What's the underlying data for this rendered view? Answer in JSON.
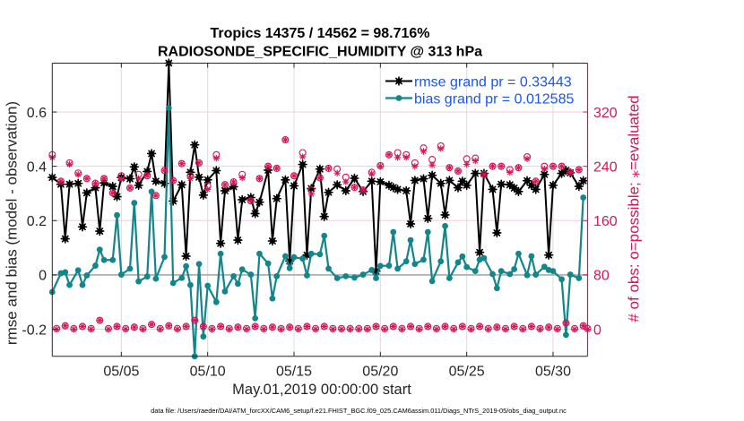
{
  "colors": {
    "rmse": "#000000",
    "bias": "#12868a",
    "obs": "#d3175a",
    "obs_grid": "#f4cdda",
    "time_grid": "#dcdcdc",
    "zero_line": "#b4b4b4",
    "legend_text": "#1a55f2",
    "axis": "#262626"
  },
  "footnote": "data file: /Users/raeder/DAI/ATM_forcXX/CAM6_setup/f.e21.FHIST_BGC.f09_025.CAM6assim.011/Diags_NTrS_2019-05/obs_diag_output.nc",
  "chart_data": {
    "type": "line",
    "title": [
      "Tropics 14375 / 14562 = 98.716%",
      "RADIOSONDE_SPECIFIC_HUMIDITY @ 313 hPa"
    ],
    "xlabel": "May.01,2019 00:00:00 start",
    "ylabel": "rmse and bias (model - observation)",
    "y2label": "# of obs: o=possible; ⁎=evaluated",
    "x_units": "days since May.01,2019 00:00:00",
    "xlim": [
      0,
      31
    ],
    "ylim": [
      -0.3,
      0.78
    ],
    "y2lim": [
      -40,
      392
    ],
    "grid": true,
    "x_ticks": [
      {
        "value": 4,
        "label": "05/05"
      },
      {
        "value": 9,
        "label": "05/10"
      },
      {
        "value": 14,
        "label": "05/15"
      },
      {
        "value": 19,
        "label": "05/20"
      },
      {
        "value": 24,
        "label": "05/25"
      },
      {
        "value": 29,
        "label": "05/30"
      }
    ],
    "y_ticks": [
      {
        "value": -0.2,
        "label": "-0.2"
      },
      {
        "value": 0,
        "label": "0"
      },
      {
        "value": 0.2,
        "label": "0.2"
      },
      {
        "value": 0.4,
        "label": "0.4"
      },
      {
        "value": 0.6,
        "label": "0.6"
      }
    ],
    "y2_ticks": [
      {
        "value": 0,
        "label": "0"
      },
      {
        "value": 80,
        "label": "80"
      },
      {
        "value": 160,
        "label": "160"
      },
      {
        "value": 240,
        "label": "240"
      },
      {
        "value": 320,
        "label": "320"
      }
    ],
    "legend": {
      "position": "top-right",
      "entries": [
        {
          "series": "rmse",
          "label": "rmse grand pr = 0.33443"
        },
        {
          "series": "bias",
          "label": "bias grand pr = 0.012585"
        }
      ]
    },
    "series": [
      {
        "name": "rmse",
        "axis": "left",
        "marker": "star",
        "color_key": "rmse",
        "x": [
          0,
          0.5,
          0.75,
          1,
          1.5,
          1.75,
          2,
          2.5,
          2.75,
          3,
          3.5,
          3.75,
          4,
          4.5,
          4.75,
          5,
          5.5,
          5.75,
          6,
          6.5,
          6.75,
          7,
          7.5,
          7.75,
          8,
          8.25,
          8.5,
          8.75,
          9,
          9.5,
          9.75,
          10,
          10.5,
          10.75,
          11,
          11.5,
          11.75,
          12,
          12.5,
          12.75,
          13,
          13.5,
          13.75,
          14,
          14.5,
          14.75,
          15,
          15.5,
          15.75,
          16,
          16.5,
          17,
          17.5,
          18,
          18.5,
          18.75,
          19,
          19.5,
          19.75,
          20,
          20.5,
          20.75,
          21,
          21.5,
          21.75,
          22,
          22.5,
          22.75,
          23,
          23.5,
          23.75,
          24,
          24.5,
          24.75,
          25,
          25.5,
          25.75,
          26,
          26.5,
          26.75,
          27,
          27.5,
          27.75,
          28,
          28.5,
          28.75,
          29,
          29.5,
          29.75,
          30,
          30.5,
          30.75
        ],
        "values": [
          0.359,
          0.334,
          0.133,
          0.334,
          0.337,
          0.177,
          0.302,
          0.321,
          0.161,
          0.339,
          0.326,
          0.288,
          0.359,
          0.354,
          0.398,
          0.33,
          0.381,
          0.447,
          0.345,
          0.337,
          0.78,
          0.272,
          0.332,
          0.069,
          0.378,
          0.479,
          0.36,
          0.294,
          0.35,
          0.384,
          0.116,
          0.31,
          0.325,
          0.128,
          0.277,
          0.285,
          0.226,
          0.268,
          0.386,
          0.125,
          0.281,
          0.35,
          0.051,
          0.328,
          0.407,
          0.073,
          0.318,
          0.39,
          0.215,
          0.304,
          0.332,
          0.31,
          0.356,
          0.307,
          0.345,
          0.014,
          0.343,
          0.33,
          0.322,
          0.315,
          0.31,
          0.188,
          0.348,
          0.354,
          0.208,
          0.367,
          0.337,
          0.221,
          0.348,
          0.321,
          0.345,
          0.33,
          0.374,
          0.083,
          0.374,
          0.315,
          0.155,
          0.334,
          0.332,
          0.32,
          0.307,
          0.347,
          0.33,
          0.315,
          0.37,
          0.073,
          0.33,
          0.374,
          0.385,
          0.376,
          0.326,
          0.347
        ]
      },
      {
        "name": "bias",
        "axis": "left",
        "marker": "dot",
        "color_key": "bias",
        "x": [
          0,
          0.5,
          0.75,
          1,
          1.5,
          1.75,
          2,
          2.5,
          2.75,
          3,
          3.5,
          3.75,
          4,
          4.5,
          4.75,
          5,
          5.5,
          5.75,
          6,
          6.5,
          6.75,
          7,
          7.5,
          7.75,
          8,
          8.25,
          8.5,
          8.75,
          9,
          9.5,
          9.75,
          10,
          10.5,
          10.75,
          11,
          11.5,
          11.75,
          12,
          12.5,
          12.75,
          13,
          13.5,
          13.75,
          14,
          14.5,
          14.75,
          15,
          15.5,
          15.75,
          16,
          16.5,
          17,
          17.5,
          18,
          18.5,
          18.75,
          19,
          19.5,
          19.75,
          20,
          20.5,
          20.75,
          21,
          21.5,
          21.75,
          22,
          22.5,
          22.75,
          23,
          23.5,
          23.75,
          24,
          24.5,
          24.75,
          25,
          25.5,
          25.75,
          26,
          26.5,
          26.75,
          27,
          27.5,
          27.75,
          28,
          28.5,
          28.75,
          29,
          29.5,
          29.75,
          30,
          30.5,
          30.75
        ],
        "values": [
          -0.063,
          0.006,
          0.01,
          -0.037,
          0.017,
          -0.037,
          -0.002,
          0.034,
          0.093,
          0.055,
          0.055,
          0.22,
          0.001,
          0.023,
          0.265,
          -0.024,
          -0.006,
          0.307,
          -0.014,
          0.066,
          0.615,
          -0.03,
          -0.011,
          0.032,
          -0.037,
          -0.3,
          0.04,
          -0.227,
          -0.04,
          -0.1,
          0.078,
          -0.061,
          -0.005,
          -0.033,
          0.02,
          0.001,
          -0.16,
          0.078,
          0.042,
          -0.087,
          -0.005,
          0.069,
          0.025,
          0.065,
          0.06,
          -0.002,
          0.078,
          0.076,
          0.144,
          0.023,
          -0.012,
          -0.005,
          -0.01,
          0.001,
          0.018,
          -0.012,
          0.033,
          0.034,
          0.158,
          0.023,
          0.05,
          0.128,
          0.04,
          0.056,
          0.158,
          -0.023,
          0.05,
          0.18,
          -0.012,
          0.046,
          0.068,
          0.029,
          0.014,
          0.056,
          0.062,
          0.003,
          -0.049,
          0.014,
          0.003,
          0.021,
          0.078,
          -0.001,
          0.069,
          0.001,
          0.03,
          0.018,
          0.014,
          -0.016,
          -0.221,
          0.001,
          -0.012,
          0.285
        ]
      },
      {
        "name": "obs possible",
        "axis": "right",
        "marker": "o",
        "color_key": "obs",
        "x": [
          0,
          0.25,
          0.5,
          0.75,
          1,
          1.25,
          1.5,
          1.75,
          2,
          2.25,
          2.5,
          2.75,
          3,
          3.25,
          3.5,
          3.75,
          4,
          4.25,
          4.5,
          4.75,
          5,
          5.25,
          5.5,
          5.75,
          6,
          6.25,
          6.5,
          6.75,
          7,
          7.25,
          7.5,
          7.75,
          8,
          8.25,
          8.5,
          8.75,
          9,
          9.25,
          9.5,
          9.75,
          10,
          10.25,
          10.5,
          10.75,
          11,
          11.25,
          11.5,
          11.75,
          12,
          12.25,
          12.5,
          12.75,
          13,
          13.25,
          13.5,
          13.75,
          14,
          14.25,
          14.5,
          14.75,
          15,
          15.25,
          15.5,
          15.75,
          16,
          16.25,
          16.5,
          16.75,
          17,
          17.25,
          17.5,
          17.75,
          18,
          18.25,
          18.5,
          18.75,
          19,
          19.25,
          19.5,
          19.75,
          20,
          20.25,
          20.5,
          20.75,
          21,
          21.25,
          21.5,
          21.75,
          22,
          22.25,
          22.5,
          22.75,
          23,
          23.25,
          23.5,
          23.75,
          24,
          24.25,
          24.5,
          24.75,
          25,
          25.25,
          25.5,
          25.75,
          26,
          26.25,
          26.5,
          26.75,
          27,
          27.25,
          27.5,
          27.75,
          28,
          28.25,
          28.5,
          28.75,
          29,
          29.25,
          29.5,
          29.75,
          30,
          30.25,
          30.5,
          30.75,
          31
        ],
        "values": [
          257,
          1,
          218,
          5,
          245,
          1,
          230,
          4,
          222,
          1,
          215,
          13,
          222,
          1,
          201,
          4,
          226,
          1,
          208,
          3,
          228,
          1,
          226,
          7,
          197,
          1,
          234,
          5,
          219,
          1,
          244,
          4,
          226,
          13,
          245,
          4,
          211,
          1,
          257,
          4,
          213,
          1,
          217,
          3,
          228,
          1,
          189,
          4,
          222,
          1,
          240,
          3,
          237,
          1,
          279,
          3,
          226,
          1,
          260,
          4,
          205,
          1,
          223,
          4,
          237,
          1,
          236,
          1,
          224,
          1,
          209,
          1,
          205,
          1,
          231,
          4,
          241,
          1,
          257,
          4,
          260,
          1,
          257,
          4,
          245,
          1,
          267,
          4,
          250,
          1,
          270,
          4,
          238,
          1,
          233,
          4,
          251,
          1,
          252,
          4,
          228,
          1,
          240,
          3,
          240,
          1,
          235,
          4,
          238,
          1,
          254,
          4,
          218,
          1,
          240,
          3,
          240,
          1,
          240,
          9,
          231,
          1,
          235,
          5,
          1
        ]
      },
      {
        "name": "obs evaluated",
        "axis": "right",
        "marker": "*",
        "color_key": "obs",
        "x": [
          0,
          0.25,
          0.5,
          0.75,
          1,
          1.25,
          1.5,
          1.75,
          2,
          2.25,
          2.5,
          2.75,
          3,
          3.25,
          3.5,
          3.75,
          4,
          4.25,
          4.5,
          4.75,
          5,
          5.25,
          5.5,
          5.75,
          6,
          6.25,
          6.5,
          6.75,
          7,
          7.25,
          7.5,
          7.75,
          8,
          8.25,
          8.5,
          8.75,
          9,
          9.25,
          9.5,
          9.75,
          10,
          10.25,
          10.5,
          10.75,
          11,
          11.25,
          11.5,
          11.75,
          12,
          12.25,
          12.5,
          12.75,
          13,
          13.25,
          13.5,
          13.75,
          14,
          14.25,
          14.5,
          14.75,
          15,
          15.25,
          15.5,
          15.75,
          16,
          16.25,
          16.5,
          16.75,
          17,
          17.25,
          17.5,
          17.75,
          18,
          18.25,
          18.5,
          18.75,
          19,
          19.25,
          19.5,
          19.75,
          20,
          20.25,
          20.5,
          20.75,
          21,
          21.25,
          21.5,
          21.75,
          22,
          22.25,
          22.5,
          22.75,
          23,
          23.25,
          23.5,
          23.75,
          24,
          24.25,
          24.5,
          24.75,
          25,
          25.25,
          25.5,
          25.75,
          26,
          26.25,
          26.5,
          26.75,
          27,
          27.25,
          27.5,
          27.75,
          28,
          28.25,
          28.5,
          28.75,
          29,
          29.25,
          29.5,
          29.75,
          30,
          30.25,
          30.5,
          30.75,
          31
        ],
        "values": [
          253,
          0,
          218,
          5,
          243,
          0,
          228,
          4,
          222,
          0,
          215,
          13,
          222,
          0,
          201,
          4,
          221,
          0,
          208,
          3,
          222,
          0,
          226,
          7,
          197,
          0,
          234,
          5,
          219,
          0,
          244,
          4,
          222,
          13,
          245,
          4,
          206,
          0,
          252,
          4,
          213,
          0,
          217,
          3,
          223,
          0,
          189,
          4,
          222,
          0,
          240,
          3,
          237,
          0,
          279,
          3,
          226,
          0,
          254,
          4,
          199,
          0,
          223,
          4,
          237,
          0,
          230,
          0,
          217,
          0,
          209,
          0,
          205,
          0,
          229,
          4,
          240,
          0,
          257,
          4,
          253,
          0,
          253,
          4,
          240,
          0,
          262,
          4,
          242,
          0,
          266,
          4,
          238,
          0,
          233,
          4,
          243,
          0,
          248,
          4,
          228,
          0,
          240,
          3,
          240,
          0,
          231,
          4,
          238,
          0,
          251,
          4,
          218,
          0,
          236,
          3,
          240,
          0,
          240,
          9,
          231,
          0,
          235,
          5,
          0
        ]
      }
    ]
  }
}
